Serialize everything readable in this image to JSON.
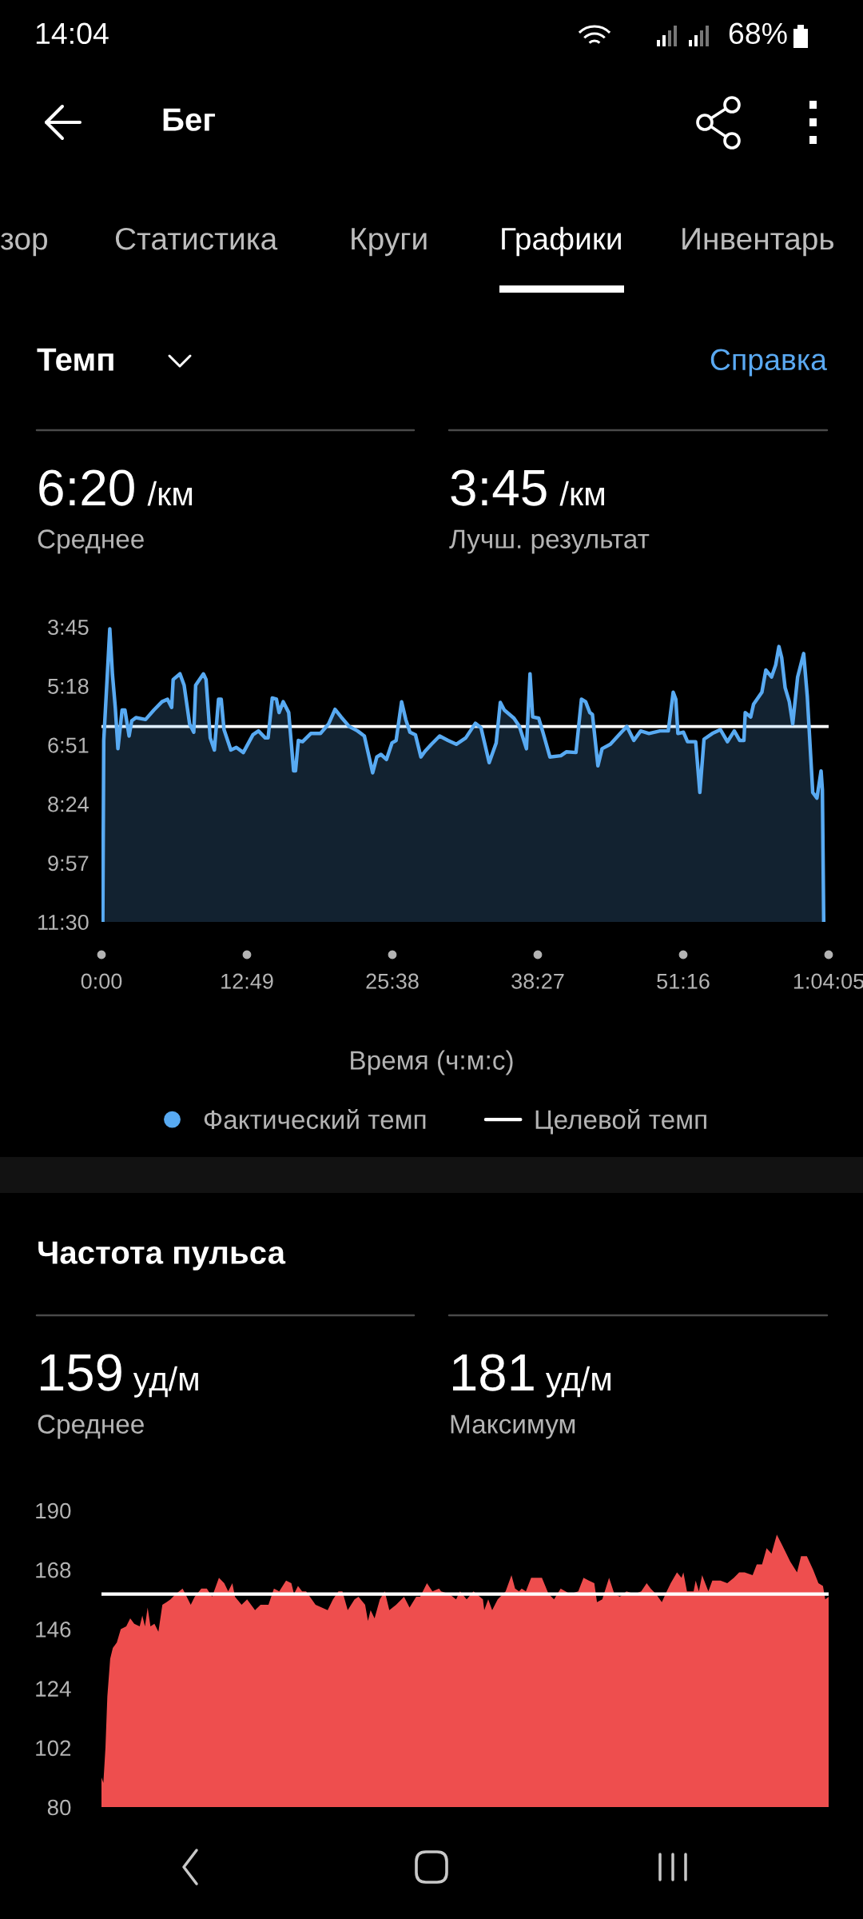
{
  "chart_data": [
    {
      "type": "other",
      "title": "Бег",
      "annotations": [
        "14:04",
        "68%",
        "зор",
        "Статистика",
        "Круги",
        "Графики",
        "Инвентарь"
      ]
    },
    {
      "type": "area",
      "title": "Темп",
      "annotations": [
        "Справка",
        "6:20",
        "/км",
        "Среднее",
        "3:45",
        "/км",
        "Лучш. результат"
      ],
      "xlabel": "Время (ч:м:с)",
      "series": [
        {
          "name": "Фактический темп",
          "type": "area",
          "color": "#58aaf2",
          "x": [
            7,
            12,
            44,
            58,
            73,
            87,
            109,
            124,
            146,
            160,
            182,
            233,
            277,
            320,
            349,
            371,
            379,
            415,
            437,
            466,
            488,
            498,
            539,
            553,
            575,
            597,
            619,
            633,
            648,
            684,
            713,
            750,
            801,
            830,
            866,
            881,
            903,
            925,
            939,
            961,
            990,
            1005,
            1016,
            1026,
            1041,
            1063,
            1107,
            1158,
            1201,
            1235,
            1267,
            1310,
            1354,
            1390,
            1412,
            1434,
            1456,
            1478,
            1507,
            1536,
            1558,
            1587,
            1609,
            1631,
            1660,
            1689,
            1711,
            1745,
            1788,
            1832,
            1876,
            1926,
            1977,
            2007,
            2050,
            2087,
            2109,
            2130,
            2181,
            2210,
            2247,
            2266,
            2280,
            2312,
            2334,
            2371,
            2429,
            2458,
            2509,
            2538,
            2560,
            2582,
            2596,
            2625,
            2647,
            2691,
            2749,
            2778,
            2815,
            2851,
            2895,
            2953,
            2997,
            3023,
            3037,
            3048,
            3077,
            3099,
            3142,
            3164,
            3186,
            3230,
            3273,
            3310,
            3346,
            3375,
            3397,
            3404,
            3433,
            3448,
            3492,
            3513,
            3543,
            3565,
            3582,
            3597,
            3615,
            3637,
            3655,
            3681,
            3713,
            3732,
            3761,
            3783,
            3805,
            3812,
            3819
          ],
          "values": [
            690,
            404,
            228,
            300,
            352,
            417,
            356,
            356,
            397,
            373,
            368,
            371,
            356,
            343,
            339,
            352,
            308,
            299,
            317,
            378,
            391,
            317,
            299,
            308,
            400,
            419,
            339,
            339,
            387,
            419,
            415,
            423,
            395,
            389,
            400,
            400,
            337,
            339,
            360,
            343,
            360,
            413,
            452,
            452,
            404,
            406,
            393,
            393,
            378,
            355,
            367,
            382,
            389,
            397,
            426,
            455,
            430,
            426,
            434,
            408,
            404,
            343,
            371,
            391,
            395,
            430,
            421,
            410,
            397,
            404,
            410,
            400,
            377,
            384,
            439,
            408,
            344,
            356,
            369,
            382,
            417,
            299,
            367,
            369,
            391,
            430,
            428,
            422,
            423,
            339,
            343,
            360,
            363,
            444,
            417,
            410,
            391,
            382,
            404,
            389,
            393,
            389,
            389,
            328,
            339,
            393,
            391,
            406,
            406,
            486,
            402,
            393,
            387,
            406,
            389,
            404,
            404,
            360,
            367,
            347,
            328,
            293,
            304,
            285,
            256,
            274,
            321,
            343,
            378,
            304,
            267,
            334,
            486,
            495,
            452,
            482,
            690
          ]
        },
        {
          "name": "Целевой темп",
          "type": "line",
          "color": "#ffffff",
          "x": [
            0,
            3845
          ],
          "values": [
            382,
            382
          ]
        }
      ],
      "xlim": [
        0,
        3845
      ],
      "xticks": [
        {
          "value": 0,
          "label": "0:00"
        },
        {
          "value": 769,
          "label": "12:49"
        },
        {
          "value": 1538,
          "label": "25:38"
        },
        {
          "value": 2307,
          "label": "38:27"
        },
        {
          "value": 3076,
          "label": "51:16"
        },
        {
          "value": 3845,
          "label": "1:04:05"
        }
      ],
      "ylim": [
        690,
        225
      ],
      "yticks": [
        {
          "value": 225,
          "label": "3:45"
        },
        {
          "value": 318,
          "label": "5:18"
        },
        {
          "value": 411,
          "label": "6:51"
        },
        {
          "value": 504,
          "label": "8:24"
        },
        {
          "value": 597,
          "label": "9:57"
        },
        {
          "value": 690,
          "label": "11:30"
        }
      ],
      "legend": "bottom"
    },
    {
      "type": "area",
      "title": "Частота пульса",
      "annotations": [
        "159",
        "уд/м",
        "Среднее",
        "181",
        "уд/м",
        "Максимум"
      ],
      "x": [
        0,
        10,
        21,
        31,
        46,
        60,
        81,
        102,
        131,
        152,
        173,
        202,
        216,
        230,
        244,
        259,
        280,
        301,
        322,
        344,
        365,
        393,
        429,
        472,
        493,
        528,
        557,
        585,
        621,
        649,
        670,
        692,
        706,
        741,
        770,
        812,
        841,
        883,
        912,
        940,
        976,
        1004,
        1018,
        1039,
        1061,
        1082,
        1132,
        1196,
        1224,
        1253,
        1274,
        1302,
        1338,
        1359,
        1394,
        1409,
        1423,
        1444,
        1472,
        1498,
        1522,
        1558,
        1600,
        1629,
        1664,
        1685,
        1721,
        1750,
        1785,
        1796,
        1839,
        1875,
        1896,
        1931,
        1967,
        2017,
        2024,
        2045,
        2066,
        2095,
        2137,
        2168,
        2187,
        2208,
        2222,
        2244,
        2272,
        2293,
        2329,
        2364,
        2393,
        2428,
        2478,
        2521,
        2549,
        2577,
        2606,
        2620,
        2648,
        2684,
        2712,
        2741,
        2776,
        2819,
        2854,
        2883,
        2904,
        2932,
        2963,
        2989,
        3010,
        3043,
        3067,
        3077,
        3096,
        3131,
        3142,
        3159,
        3176,
        3209,
        3230,
        3273,
        3309,
        3344,
        3372,
        3401,
        3443,
        3465,
        3493,
        3517,
        3543,
        3571,
        3600,
        3642,
        3678,
        3699,
        3730,
        3763,
        3791,
        3815,
        3827,
        3845
      ],
      "series": [
        {
          "color": "#ee4e4e",
          "values": [
            91,
            89,
            102,
            121,
            135,
            139,
            141,
            146,
            147,
            150,
            148,
            147,
            151,
            147,
            154,
            147,
            148,
            145,
            155,
            156,
            157,
            159,
            161,
            155,
            158,
            161,
            161,
            158,
            165,
            163,
            160,
            163,
            158,
            155,
            157,
            153,
            155,
            155,
            161,
            160,
            164,
            163,
            159,
            162,
            160,
            160,
            155,
            153,
            157,
            160,
            160,
            153,
            157,
            158,
            155,
            149,
            153,
            150,
            157,
            160,
            153,
            155,
            158,
            154,
            158,
            158,
            163,
            160,
            161,
            160,
            159,
            157,
            160,
            157,
            160,
            157,
            153,
            157,
            153,
            157,
            160,
            166,
            161,
            160,
            161,
            160,
            165,
            165,
            165,
            159,
            157,
            161,
            159,
            160,
            165,
            164,
            163,
            156,
            157,
            165,
            159,
            158,
            160,
            159,
            160,
            163,
            161,
            159,
            156,
            160,
            163,
            167,
            165,
            167,
            160,
            160,
            164,
            160,
            166,
            160,
            164,
            164,
            163,
            165,
            167,
            167,
            166,
            170,
            170,
            176,
            174,
            181,
            177,
            171,
            167,
            173,
            173,
            168,
            163,
            162,
            157,
            158
          ]
        }
      ],
      "xlim": [
        0,
        3845
      ],
      "ylim": [
        80,
        190
      ],
      "yticks": [
        80,
        102,
        124,
        146,
        168,
        190
      ],
      "tick_labels": "y",
      "ref_lines": [
        {
          "axis": "y",
          "value": 159,
          "color": "#ffffff"
        }
      ]
    }
  ]
}
